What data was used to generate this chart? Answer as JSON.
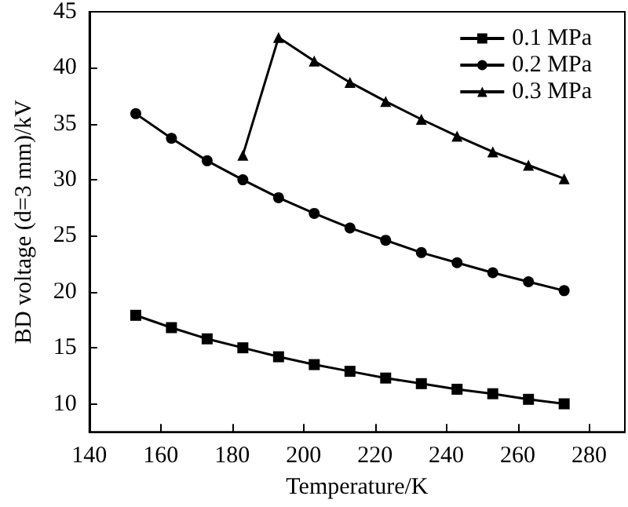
{
  "chart_data": {
    "type": "line",
    "xlabel": "Temperature/K",
    "ylabel": "BD voltage (d=3 mm)/kV",
    "xlim": [
      140,
      290
    ],
    "xticks": [
      140,
      160,
      180,
      200,
      220,
      240,
      260,
      280
    ],
    "ylim": [
      7.5,
      45
    ],
    "yticks": [
      10,
      15,
      20,
      25,
      30,
      35,
      40,
      45
    ],
    "grid": false,
    "legend": "top right",
    "series": [
      {
        "name": "0.1 MPa",
        "color": "#000000",
        "marker": "square",
        "x": [
          153,
          163,
          173,
          183,
          193,
          203,
          213,
          223,
          233,
          243,
          253,
          263,
          273
        ],
        "values": [
          17.9,
          16.8,
          15.8,
          15.0,
          14.2,
          13.5,
          12.9,
          12.3,
          11.8,
          11.3,
          10.9,
          10.4,
          10.0
        ]
      },
      {
        "name": "0.2 MPa",
        "color": "#000000",
        "marker": "circle",
        "x": [
          153,
          163,
          173,
          183,
          193,
          203,
          213,
          223,
          233,
          243,
          253,
          263,
          273
        ],
        "values": [
          35.9,
          33.7,
          31.7,
          30.0,
          28.4,
          27.0,
          25.7,
          24.6,
          23.5,
          22.6,
          21.7,
          20.9,
          20.1
        ]
      },
      {
        "name": "0.3 MPa",
        "color": "#000000",
        "marker": "triangle",
        "x": [
          183,
          193,
          203,
          213,
          223,
          233,
          243,
          253,
          263,
          273
        ],
        "values": [
          32.2,
          42.7,
          40.6,
          38.7,
          37.0,
          35.4,
          33.9,
          32.5,
          31.3,
          30.1
        ]
      }
    ]
  }
}
